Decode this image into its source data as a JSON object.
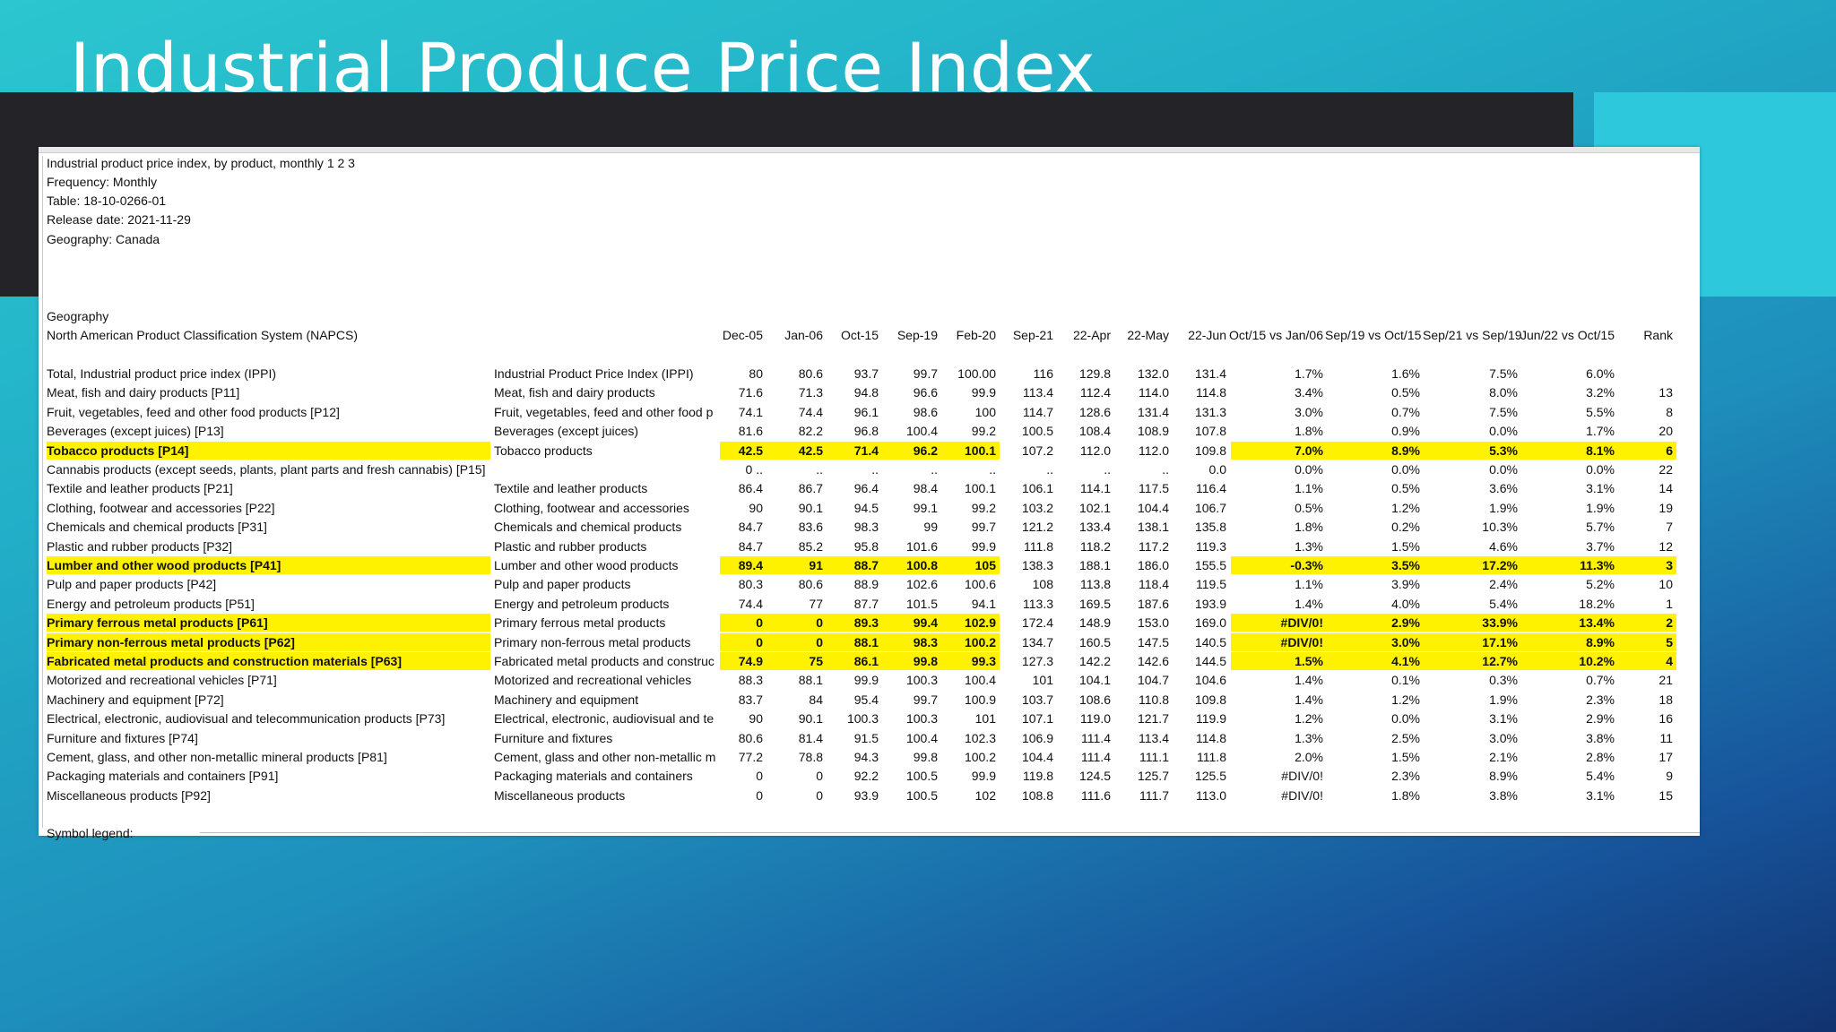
{
  "title": "Industrial Produce Price Index",
  "meta": [
    "Industrial product price index, by product, monthly 1 2 3",
    "Frequency: Monthly",
    "Table: 18-10-0266-01",
    "Release date: 2021-11-29",
    "Geography: Canada"
  ],
  "geography_label": "Geography",
  "napcs_label": "North American Product Classification System (NAPCS)",
  "columns": [
    "Dec-05",
    "Jan-06",
    "Oct-15",
    "Sep-19",
    "Feb-20",
    "Sep-21",
    "22-Apr",
    "22-May",
    "22-Jun",
    "Oct/15 vs Jan/06",
    "Sep/19 vs Oct/15",
    "Sep/21 vs Sep/19",
    "Jun/22 vs Oct/15",
    "Rank"
  ],
  "rows": [
    {
      "name": "Total, Industrial product price index (IPPI)",
      "desc": "Industrial Product Price Index (IPPI)",
      "v": [
        "80",
        "80.6",
        "93.7",
        "99.7",
        "100.00",
        "116",
        "129.8",
        "132.0",
        "131.4",
        "1.7%",
        "1.6%",
        "7.5%",
        "6.0%",
        ""
      ],
      "hl": false
    },
    {
      "name": "Meat, fish and dairy products  [P11]",
      "desc": "Meat, fish and dairy products",
      "v": [
        "71.6",
        "71.3",
        "94.8",
        "96.6",
        "99.9",
        "113.4",
        "112.4",
        "114.0",
        "114.8",
        "3.4%",
        "0.5%",
        "8.0%",
        "3.2%",
        "13"
      ],
      "hl": false
    },
    {
      "name": "Fruit, vegetables, feed and other food products  [P12]",
      "desc": "Fruit, vegetables, feed and other food p",
      "v": [
        "74.1",
        "74.4",
        "96.1",
        "98.6",
        "100",
        "114.7",
        "128.6",
        "131.4",
        "131.3",
        "3.0%",
        "0.7%",
        "7.5%",
        "5.5%",
        "8"
      ],
      "hl": false
    },
    {
      "name": "Beverages (except juices)  [P13]",
      "desc": "Beverages (except juices)",
      "v": [
        "81.6",
        "82.2",
        "96.8",
        "100.4",
        "99.2",
        "100.5",
        "108.4",
        "108.9",
        "107.8",
        "1.8%",
        "0.9%",
        "0.0%",
        "1.7%",
        "20"
      ],
      "hl": false
    },
    {
      "name": "Tobacco products  [P14]",
      "desc": "Tobacco products",
      "v": [
        "42.5",
        "42.5",
        "71.4",
        "96.2",
        "100.1",
        "107.2",
        "112.0",
        "112.0",
        "109.8",
        "7.0%",
        "8.9%",
        "5.3%",
        "8.1%",
        "6"
      ],
      "hl": true
    },
    {
      "name": "Cannabis products (except seeds, plants, plant parts and fresh cannabis)  [P15]",
      "desc": "",
      "v": [
        "0 ..",
        "..",
        "..",
        "..",
        "..",
        "..",
        "..",
        "..",
        "0.0",
        "0.0%",
        "0.0%",
        "0.0%",
        "0.0%",
        "22"
      ],
      "hl": false
    },
    {
      "name": "Textile and leather products  [P21]",
      "desc": "Textile and leather products",
      "v": [
        "86.4",
        "86.7",
        "96.4",
        "98.4",
        "100.1",
        "106.1",
        "114.1",
        "117.5",
        "116.4",
        "1.1%",
        "0.5%",
        "3.6%",
        "3.1%",
        "14"
      ],
      "hl": false
    },
    {
      "name": "Clothing, footwear and accessories  [P22]",
      "desc": "Clothing, footwear and accessories",
      "v": [
        "90",
        "90.1",
        "94.5",
        "99.1",
        "99.2",
        "103.2",
        "102.1",
        "104.4",
        "106.7",
        "0.5%",
        "1.2%",
        "1.9%",
        "1.9%",
        "19"
      ],
      "hl": false
    },
    {
      "name": "Chemicals and chemical products  [P31]",
      "desc": "Chemicals and chemical products",
      "v": [
        "84.7",
        "83.6",
        "98.3",
        "99",
        "99.7",
        "121.2",
        "133.4",
        "138.1",
        "135.8",
        "1.8%",
        "0.2%",
        "10.3%",
        "5.7%",
        "7"
      ],
      "hl": false
    },
    {
      "name": "Plastic and rubber products  [P32]",
      "desc": "Plastic and rubber products",
      "v": [
        "84.7",
        "85.2",
        "95.8",
        "101.6",
        "99.9",
        "111.8",
        "118.2",
        "117.2",
        "119.3",
        "1.3%",
        "1.5%",
        "4.6%",
        "3.7%",
        "12"
      ],
      "hl": false
    },
    {
      "name": "Lumber and other wood products  [P41]",
      "desc": "Lumber and other wood products",
      "v": [
        "89.4",
        "91",
        "88.7",
        "100.8",
        "105",
        "138.3",
        "188.1",
        "186.0",
        "155.5",
        "-0.3%",
        "3.5%",
        "17.2%",
        "11.3%",
        "3"
      ],
      "hl": true
    },
    {
      "name": "Pulp and paper products  [P42]",
      "desc": "Pulp and paper products",
      "v": [
        "80.3",
        "80.6",
        "88.9",
        "102.6",
        "100.6",
        "108",
        "113.8",
        "118.4",
        "119.5",
        "1.1%",
        "3.9%",
        "2.4%",
        "5.2%",
        "10"
      ],
      "hl": false
    },
    {
      "name": "Energy and petroleum products  [P51]",
      "desc": "Energy and petroleum products",
      "v": [
        "74.4",
        "77",
        "87.7",
        "101.5",
        "94.1",
        "113.3",
        "169.5",
        "187.6",
        "193.9",
        "1.4%",
        "4.0%",
        "5.4%",
        "18.2%",
        "1"
      ],
      "hl": false
    },
    {
      "name": "Primary ferrous metal products  [P61]",
      "desc": "Primary ferrous metal products",
      "v": [
        "0",
        "0",
        "89.3",
        "99.4",
        "102.9",
        "172.4",
        "148.9",
        "153.0",
        "169.0",
        "#DIV/0!",
        "2.9%",
        "33.9%",
        "13.4%",
        "2"
      ],
      "hl": true
    },
    {
      "name": "Primary non-ferrous metal products  [P62]",
      "desc": "Primary non-ferrous metal products",
      "v": [
        "0",
        "0",
        "88.1",
        "98.3",
        "100.2",
        "134.7",
        "160.5",
        "147.5",
        "140.5",
        "#DIV/0!",
        "3.0%",
        "17.1%",
        "8.9%",
        "5"
      ],
      "hl": true
    },
    {
      "name": "Fabricated metal products and construction materials  [P63]",
      "desc": "Fabricated metal products and construc",
      "v": [
        "74.9",
        "75",
        "86.1",
        "99.8",
        "99.3",
        "127.3",
        "142.2",
        "142.6",
        "144.5",
        "1.5%",
        "4.1%",
        "12.7%",
        "10.2%",
        "4"
      ],
      "hl": true
    },
    {
      "name": "Motorized and recreational vehicles  [P71]",
      "desc": "Motorized and recreational vehicles",
      "v": [
        "88.3",
        "88.1",
        "99.9",
        "100.3",
        "100.4",
        "101",
        "104.1",
        "104.7",
        "104.6",
        "1.4%",
        "0.1%",
        "0.3%",
        "0.7%",
        "21"
      ],
      "hl": false
    },
    {
      "name": "Machinery and equipment  [P72]",
      "desc": "Machinery and equipment",
      "v": [
        "83.7",
        "84",
        "95.4",
        "99.7",
        "100.9",
        "103.7",
        "108.6",
        "110.8",
        "109.8",
        "1.4%",
        "1.2%",
        "1.9%",
        "2.3%",
        "18"
      ],
      "hl": false
    },
    {
      "name": "Electrical, electronic, audiovisual and telecommunication products  [P73]",
      "desc": "Electrical, electronic, audiovisual and te",
      "v": [
        "90",
        "90.1",
        "100.3",
        "100.3",
        "101",
        "107.1",
        "119.0",
        "121.7",
        "119.9",
        "1.2%",
        "0.0%",
        "3.1%",
        "2.9%",
        "16"
      ],
      "hl": false
    },
    {
      "name": "Furniture and fixtures  [P74]",
      "desc": "Furniture and fixtures",
      "v": [
        "80.6",
        "81.4",
        "91.5",
        "100.4",
        "102.3",
        "106.9",
        "111.4",
        "113.4",
        "114.8",
        "1.3%",
        "2.5%",
        "3.0%",
        "3.8%",
        "11"
      ],
      "hl": false
    },
    {
      "name": "Cement, glass, and other non-metallic mineral products  [P81]",
      "desc": "Cement, glass and other non-metallic m",
      "v": [
        "77.2",
        "78.8",
        "94.3",
        "99.8",
        "100.2",
        "104.4",
        "111.4",
        "111.1",
        "111.8",
        "2.0%",
        "1.5%",
        "2.1%",
        "2.8%",
        "17"
      ],
      "hl": false
    },
    {
      "name": "Packaging materials and containers  [P91]",
      "desc": "Packaging materials and containers",
      "v": [
        "0",
        "0",
        "92.2",
        "100.5",
        "99.9",
        "119.8",
        "124.5",
        "125.7",
        "125.5",
        "#DIV/0!",
        "2.3%",
        "8.9%",
        "5.4%",
        "9"
      ],
      "hl": false
    },
    {
      "name": "Miscellaneous products  [P92]",
      "desc": "Miscellaneous products",
      "v": [
        "0",
        "0",
        "93.9",
        "100.5",
        "102",
        "108.8",
        "111.6",
        "111.7",
        "113.0",
        "#DIV/0!",
        "1.8%",
        "3.8%",
        "3.1%",
        "15"
      ],
      "hl": false
    }
  ],
  "footer": "Symbol legend:",
  "colors": {
    "highlight": "#fff200",
    "dark_band": "#242428",
    "accent": "#2ec8dc"
  }
}
